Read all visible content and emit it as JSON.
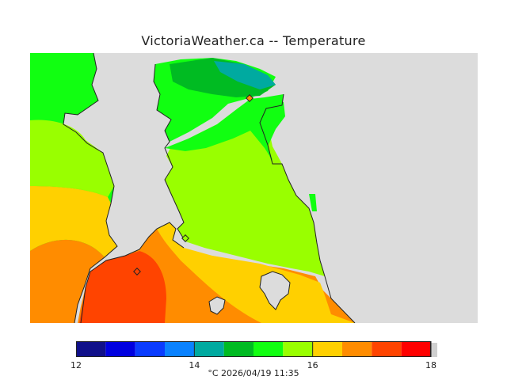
{
  "title": "VictoriaWeather.ca -- Temperature",
  "colors": {
    "land_background": "#dcdcdc",
    "coast": "#222222",
    "bands": [
      "#10108a",
      "#0000e0",
      "#0a3cff",
      "#0a82ff",
      "#00aaa0",
      "#00bb22",
      "#11ff11",
      "#99ff00",
      "#ffd000",
      "#ff8c00",
      "#ff4400",
      "#ff0000"
    ]
  },
  "legend": {
    "ticks": [
      "12",
      "14",
      "16",
      "18"
    ],
    "range": [
      12,
      18
    ],
    "step": 0.5,
    "caption": "°C  2026/04/19 11:35"
  },
  "markers": [
    "station-marker-1",
    "station-marker-2",
    "station-marker-3"
  ]
}
